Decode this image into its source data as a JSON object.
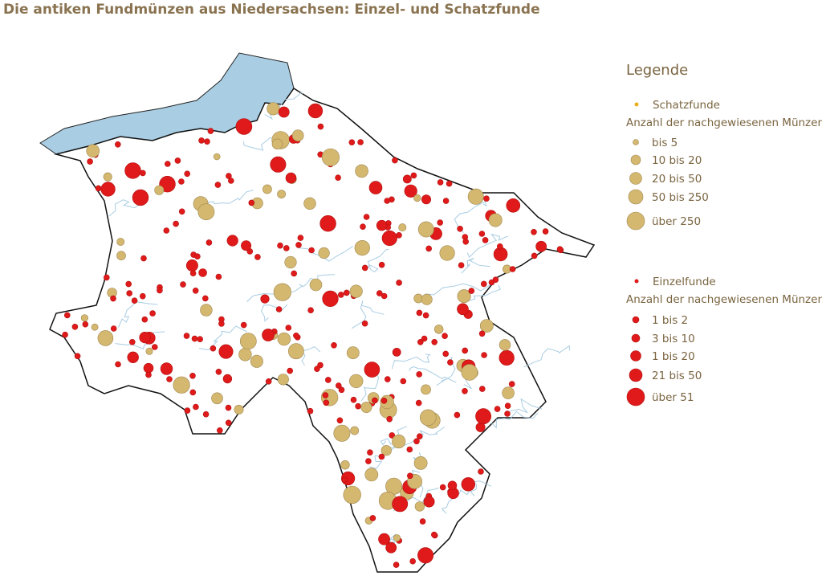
{
  "title": "Die antiken Fundmünzen aus Niedersachsen: Einzel- und Schatzfunde",
  "legend": {
    "title": "Legende",
    "groups": [
      {
        "name": "Schatzfunde",
        "subtitle": "Anzahl der nachgewiesenen Münzen",
        "items": [
          "bis 5",
          "10 bis 20",
          "20 bis 50",
          "50 bis 250",
          "über 250"
        ]
      },
      {
        "name": "Einzelfunde",
        "subtitle": "Anzahl der nachgewiesenen Münzen",
        "items": [
          "1 bis 2",
          "3 bis 10",
          "1 bis 20",
          "21 bis 50",
          "über 51"
        ]
      }
    ]
  }
}
